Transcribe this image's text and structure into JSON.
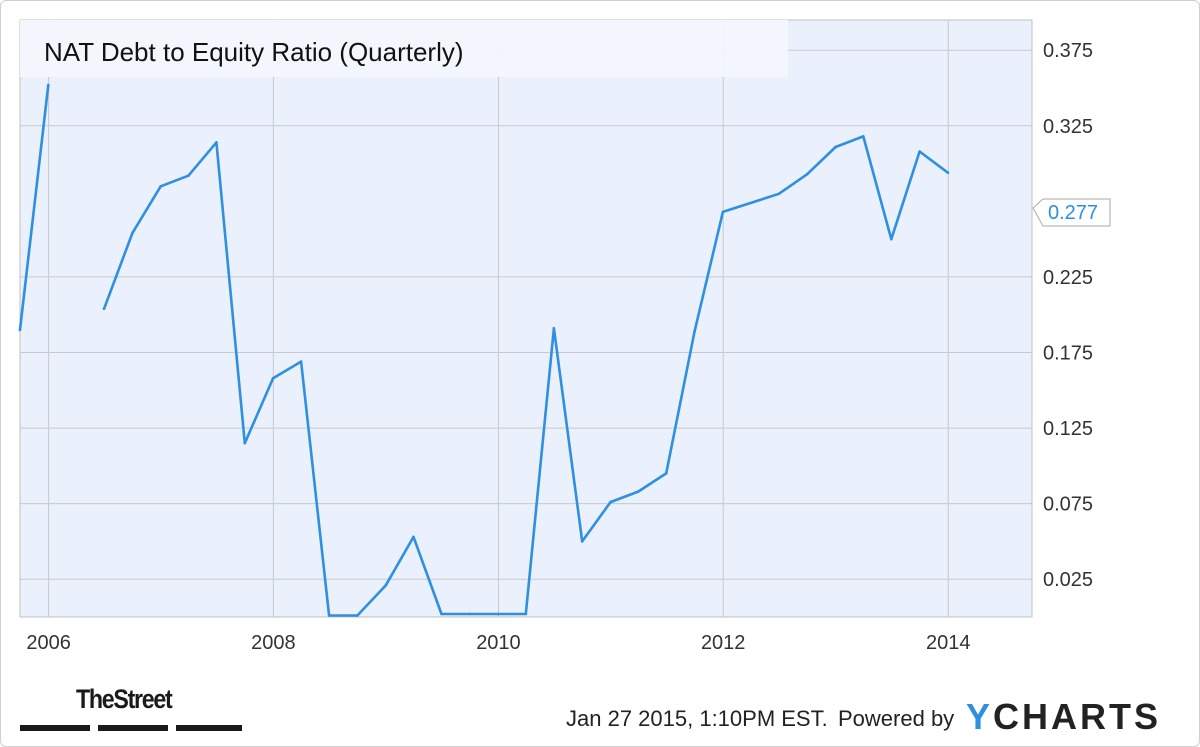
{
  "chart_data": {
    "type": "line",
    "title": "NAT Debt to Equity Ratio (Quarterly)",
    "xlabel": "",
    "ylabel": "",
    "x_ticks": [
      "2006",
      "2008",
      "2010",
      "2012",
      "2014"
    ],
    "y_ticks": [
      "0.025",
      "0.075",
      "0.125",
      "0.175",
      "0.225",
      "0.325",
      "0.375"
    ],
    "y_range": [
      0,
      0.395
    ],
    "x_range": [
      "2005-09-30",
      "2014-09-30"
    ],
    "grid": true,
    "last_value_label": "0.277",
    "series": [
      {
        "name": "",
        "color": "#2f8fe0",
        "segments": [
          [
            {
              "x": "2005-09-30",
              "y": 0.19
            },
            {
              "x": "2005-12-31",
              "y": 0.352
            }
          ],
          [
            {
              "x": "2006-06-30",
              "y": 0.204
            },
            {
              "x": "2006-09-30",
              "y": 0.254
            },
            {
              "x": "2006-12-31",
              "y": 0.285
            },
            {
              "x": "2007-03-31",
              "y": 0.292
            },
            {
              "x": "2007-06-30",
              "y": 0.314
            },
            {
              "x": "2007-09-30",
              "y": 0.115
            },
            {
              "x": "2007-12-31",
              "y": 0.158
            },
            {
              "x": "2008-03-31",
              "y": 0.169
            },
            {
              "x": "2008-06-30",
              "y": 0.001
            },
            {
              "x": "2008-09-30",
              "y": 0.001
            },
            {
              "x": "2008-12-31",
              "y": 0.021
            },
            {
              "x": "2009-03-31",
              "y": 0.053
            },
            {
              "x": "2009-06-30",
              "y": 0.002
            },
            {
              "x": "2009-09-30",
              "y": 0.002
            },
            {
              "x": "2009-12-31",
              "y": 0.002
            },
            {
              "x": "2010-03-31",
              "y": 0.002
            },
            {
              "x": "2010-06-30",
              "y": 0.191
            },
            {
              "x": "2010-09-30",
              "y": 0.05
            },
            {
              "x": "2010-12-31",
              "y": 0.076
            },
            {
              "x": "2011-03-31",
              "y": 0.083
            },
            {
              "x": "2011-06-30",
              "y": 0.095
            },
            {
              "x": "2011-09-30",
              "y": 0.189
            },
            {
              "x": "2011-12-31",
              "y": 0.268
            },
            {
              "x": "2012-03-31",
              "y": 0.274
            },
            {
              "x": "2012-06-30",
              "y": 0.28
            },
            {
              "x": "2012-09-30",
              "y": 0.293
            },
            {
              "x": "2012-12-31",
              "y": 0.311
            },
            {
              "x": "2013-03-31",
              "y": 0.318
            },
            {
              "x": "2013-06-30",
              "y": 0.25
            },
            {
              "x": "2013-09-30",
              "y": 0.308
            },
            {
              "x": "2013-12-31",
              "y": 0.294
            }
          ]
        ]
      }
    ]
  },
  "footer": {
    "date": "Jan 27 2015, 1:10PM EST.",
    "powered_by": "Powered by",
    "ycharts_y": "Y",
    "ycharts_rest": "CHARTS",
    "thestreet": "TheStreet"
  },
  "colors": {
    "plot_bg": "#eaf0fc",
    "grid": "#c9c9c9",
    "line": "#2f8fe0"
  }
}
